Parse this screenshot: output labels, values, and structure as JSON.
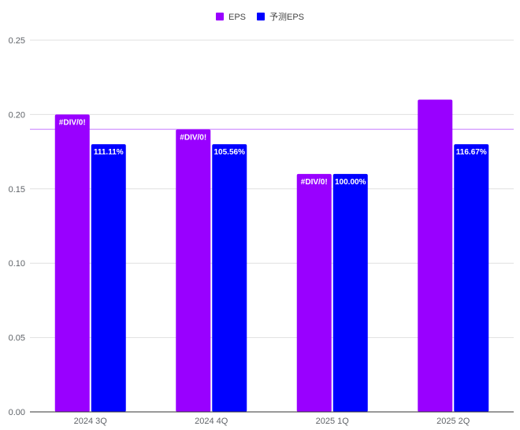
{
  "chart_data": {
    "type": "bar",
    "title": "",
    "xlabel": "",
    "ylabel": "",
    "categories": [
      "2024 3Q",
      "2024 4Q",
      "2025 1Q",
      "2025 2Q"
    ],
    "ylim": [
      0,
      0.25
    ],
    "yticks": [
      0.25,
      0.2,
      0.15,
      0.1,
      0.05,
      0.0
    ],
    "ytick_labels": [
      "0.25",
      "0.20",
      "0.15",
      "0.10",
      "0.05",
      "0.00"
    ],
    "grid": true,
    "legend_position": "top",
    "series": [
      {
        "name": "EPS",
        "color": "#9900ff",
        "values": [
          0.2,
          0.19,
          0.16,
          0.21
        ],
        "labels": [
          "#DIV/0!",
          "#DIV/0!",
          "#DIV/0!",
          ""
        ]
      },
      {
        "name": "予测EPS",
        "color": "#0000ff",
        "values": [
          0.18,
          0.18,
          0.16,
          0.18
        ],
        "labels": [
          "111.11%",
          "105.56%",
          "100.00%",
          "116.67%"
        ]
      }
    ],
    "reference_line": {
      "value": 0.19,
      "color": "#d9a6ff"
    },
    "colors": {
      "grid": "#e0e0e0",
      "axis": "#333333",
      "text": "#5f6368"
    }
  }
}
